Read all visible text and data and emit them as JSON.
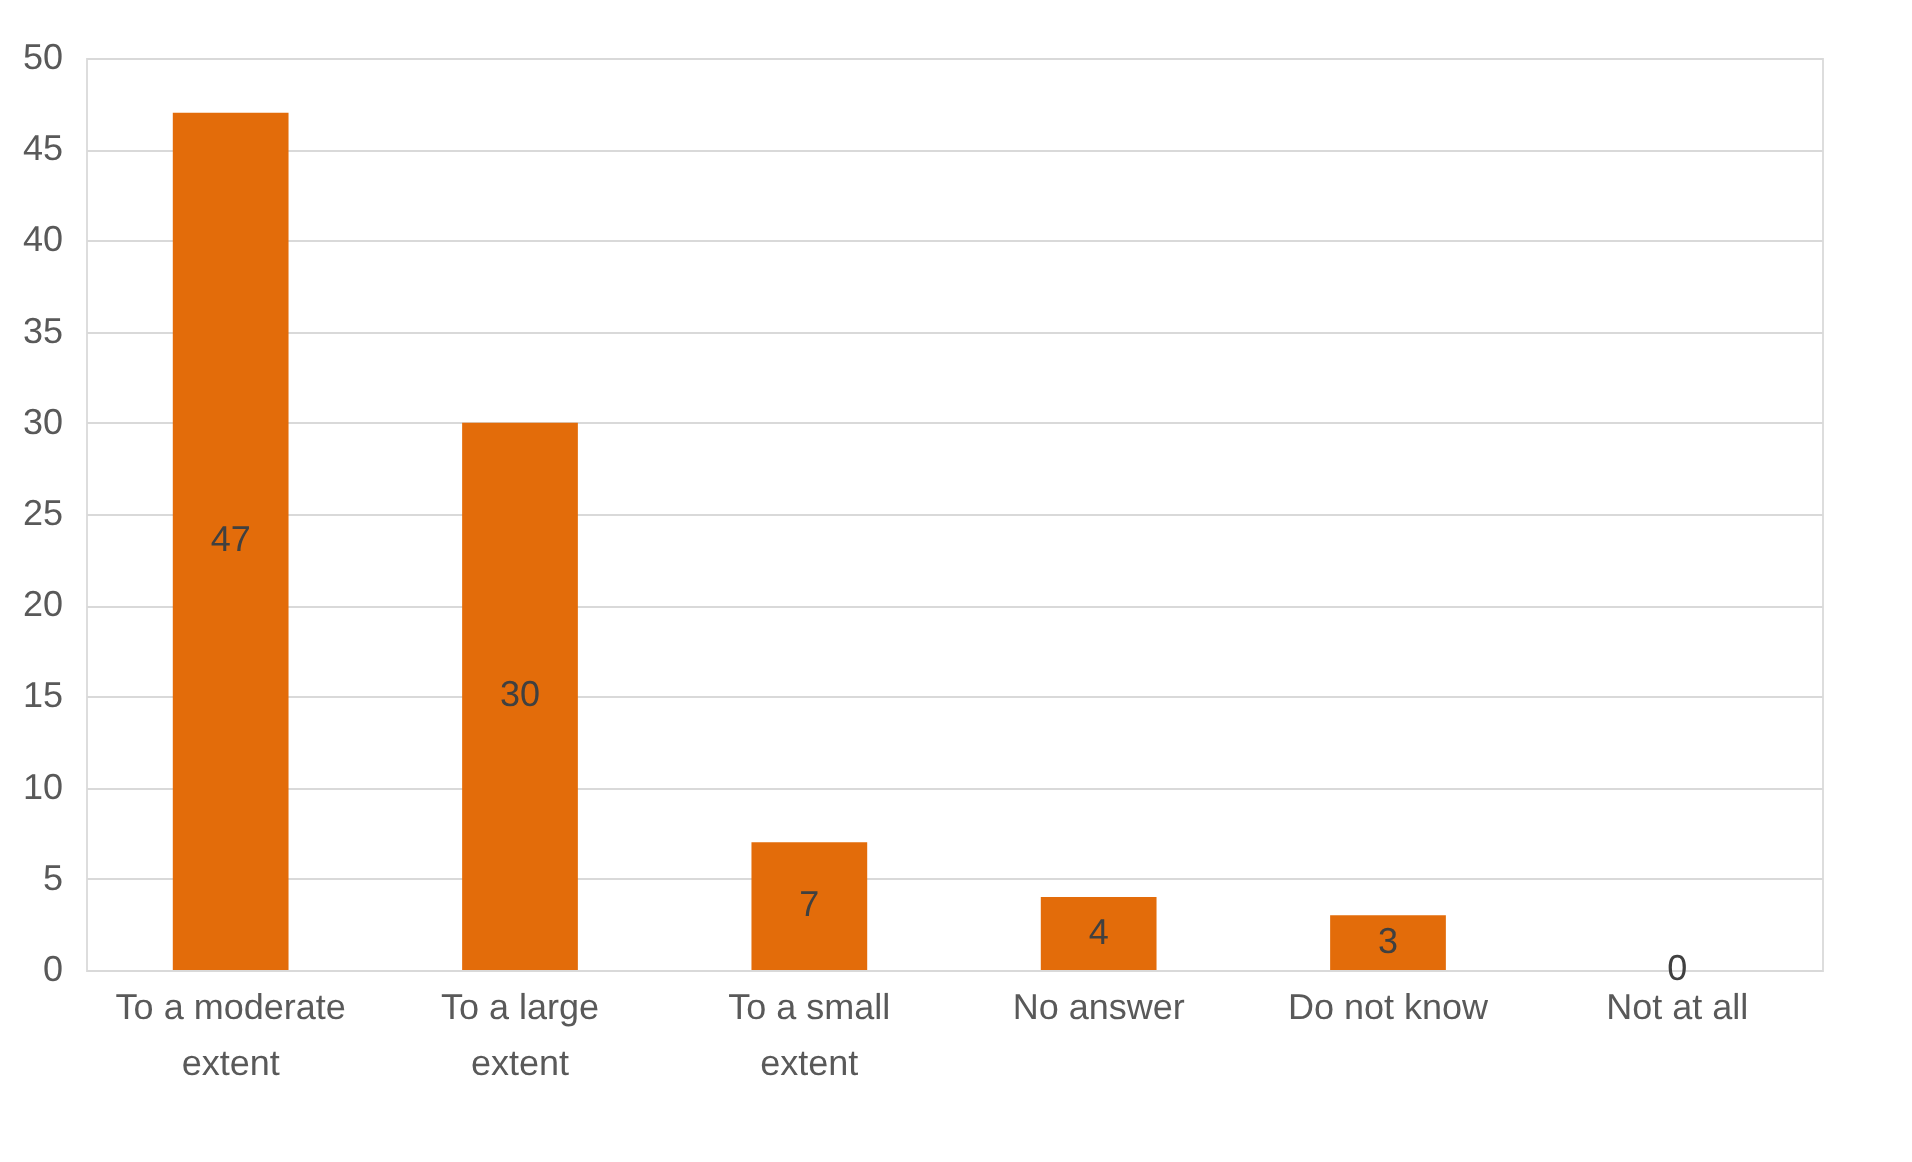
{
  "chart_data": {
    "type": "bar",
    "categories": [
      "To a moderate extent",
      "To a large extent",
      "To a small extent",
      "No answer",
      "Do not know",
      "Not at all"
    ],
    "values": [
      47,
      30,
      7,
      4,
      3,
      0
    ],
    "color": "#e36c0a",
    "ylim": [
      0,
      50
    ],
    "yticks": [
      0,
      5,
      10,
      15,
      20,
      25,
      30,
      35,
      40,
      45,
      50
    ],
    "grid": "y",
    "data_labels": true
  }
}
